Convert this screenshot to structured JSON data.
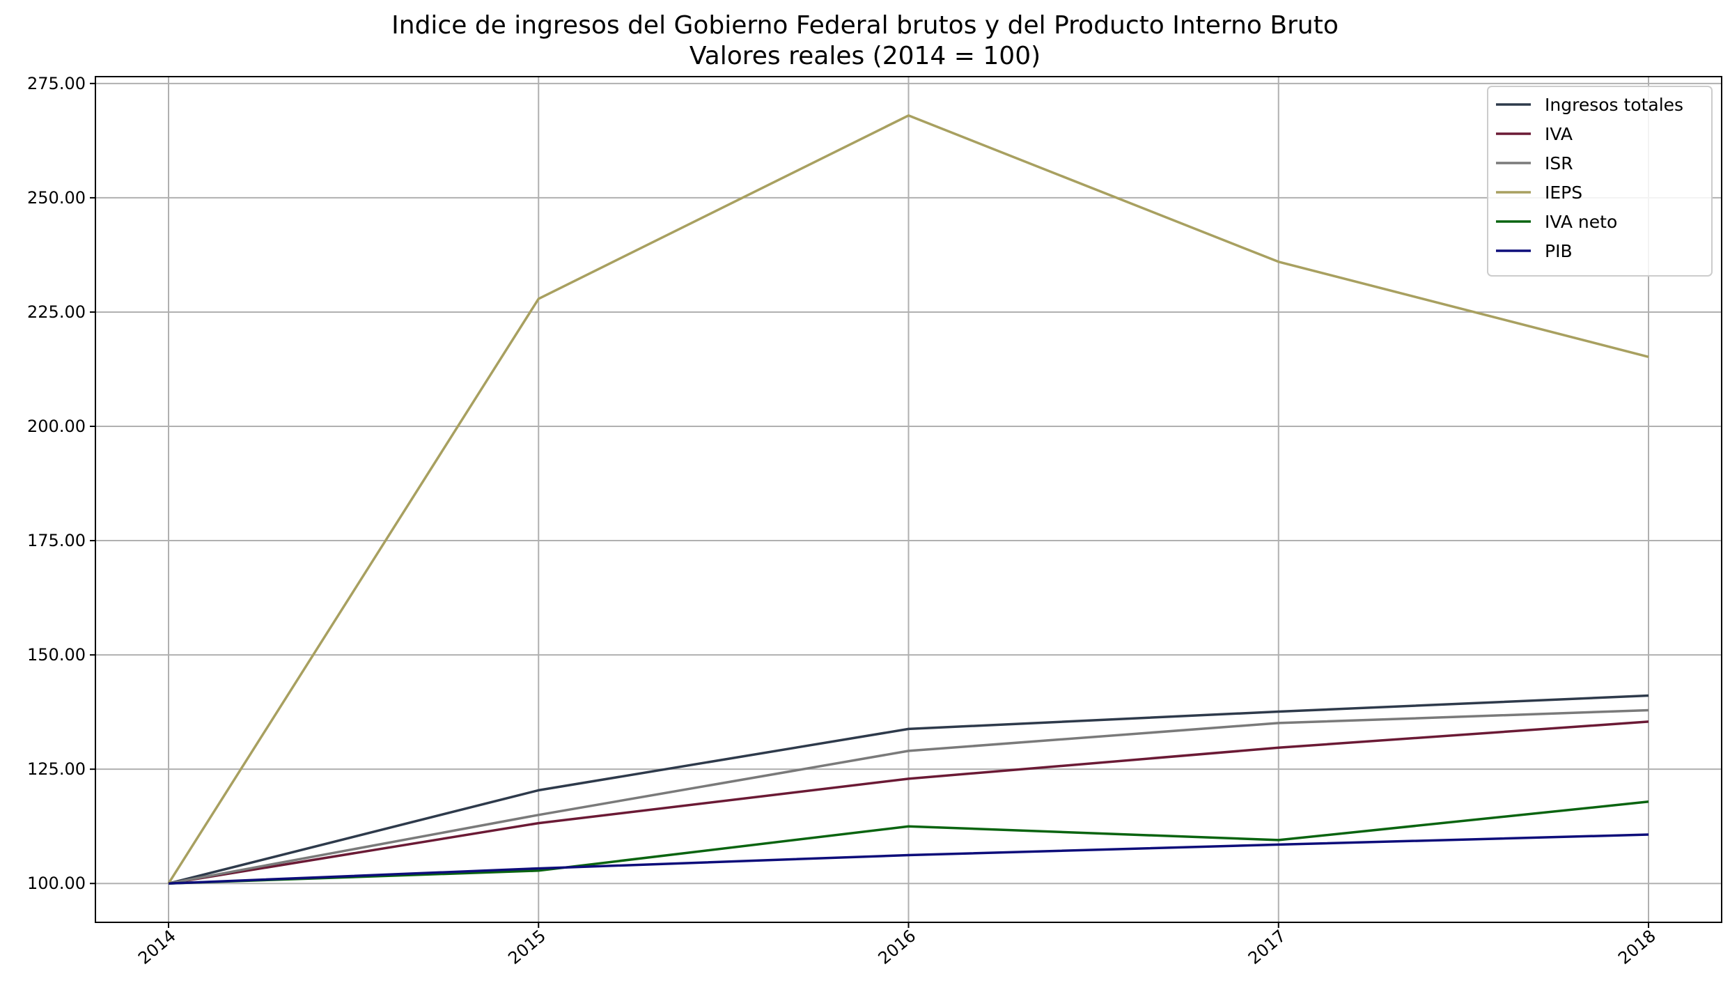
{
  "chart_data": {
    "type": "line",
    "title": "Indice de ingresos del Gobierno Federal brutos y del Producto Interno Bruto",
    "subtitle": "Valores reales (2014 = 100)",
    "xlabel": "",
    "ylabel": "",
    "x": [
      "2014",
      "2015",
      "2016",
      "2017",
      "2018"
    ],
    "ylim": [
      91.5,
      276.5
    ],
    "yticks": [
      "100.00",
      "125.00",
      "150.00",
      "175.00",
      "200.00",
      "225.00",
      "250.00",
      "275.00"
    ],
    "grid": true,
    "legend_position": "top-right",
    "series": [
      {
        "name": "Ingresos totales",
        "color": "#2e3a4b",
        "values": [
          100,
          120.4,
          133.8,
          137.6,
          141.1
        ]
      },
      {
        "name": "IVA",
        "color": "#6b1a35",
        "values": [
          100,
          113.2,
          122.9,
          129.7,
          135.4
        ]
      },
      {
        "name": "ISR",
        "color": "#7a7a7a",
        "values": [
          100,
          115.0,
          129.0,
          135.1,
          137.9
        ]
      },
      {
        "name": "IEPS",
        "color": "#a8a060",
        "values": [
          100,
          227.9,
          268.0,
          236.0,
          215.2
        ]
      },
      {
        "name": "IVA neto",
        "color": "#0a6410",
        "values": [
          100,
          102.8,
          112.5,
          109.5,
          117.9
        ]
      },
      {
        "name": "PIB",
        "color": "#0d0d7a",
        "values": [
          100,
          103.3,
          106.2,
          108.5,
          110.7
        ]
      }
    ]
  }
}
